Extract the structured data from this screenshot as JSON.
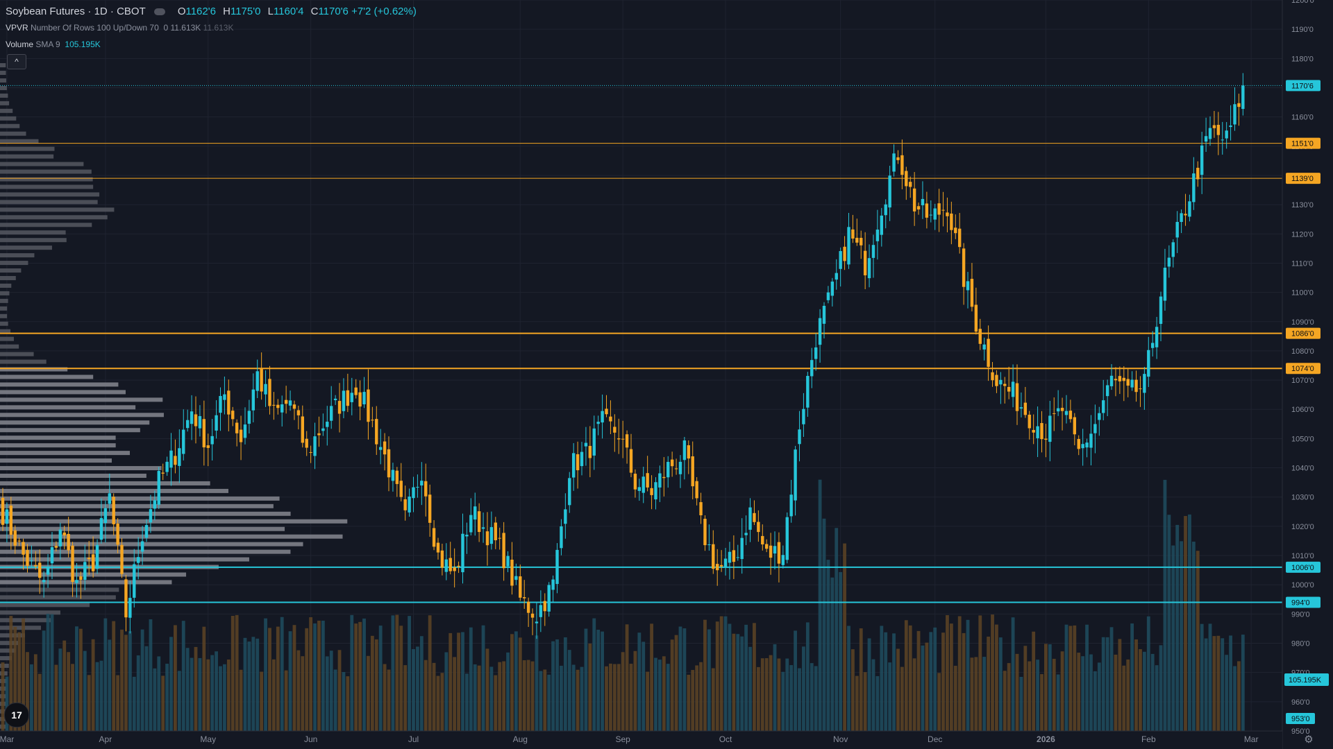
{
  "header": {
    "title": "Soybean Futures · 1D · CBOT",
    "ohlc": [
      {
        "k": "O",
        "v": "1162'6"
      },
      {
        "k": "H",
        "v": "1175'0"
      },
      {
        "k": "L",
        "v": "1160'4"
      },
      {
        "k": "C",
        "v": "1170'6"
      }
    ],
    "change": "+7'2 (+0.62%)"
  },
  "vpvr": {
    "name": "VPVR",
    "params": "Number Of Rows 100 Up/Down 70",
    "value0": "0",
    "value1": "11.613K",
    "value2": "11.613K"
  },
  "volume": {
    "name": "Volume",
    "params": "SMA 9",
    "value": "105.195K"
  },
  "icons": {
    "collapse": "chevron-up-icon",
    "logo": "tradingview-logo-icon",
    "settings": "gear-icon",
    "eye": "eye-icon"
  },
  "logo_text": "17",
  "collapse_glyph": "^",
  "gear_glyph": "⚙",
  "colors": {
    "up": "#26c6da",
    "down": "#f5a623",
    "background": "#141823",
    "grid": "#1f2330",
    "axis_text": "#8a8f9c",
    "cyan_line": "#26c6da",
    "orange_line": "#f5a623"
  },
  "chart_data": {
    "type": "candlestick",
    "symbol": "Soybean Futures",
    "interval": "1D",
    "exchange": "CBOT",
    "ylim": [
      950,
      1200
    ],
    "y_ticks": [
      "950'0",
      "960'0",
      "970'0",
      "980'0",
      "990'0",
      "1000'0",
      "1010'0",
      "1020'0",
      "1030'0",
      "1040'0",
      "1050'0",
      "1060'0",
      "1070'0",
      "1080'0",
      "1090'0",
      "1100'0",
      "1110'0",
      "1120'0",
      "1130'0",
      "1140'0",
      "1150'0",
      "1160'0",
      "1170'0",
      "1180'0",
      "1190'0",
      "1200'0"
    ],
    "x_labels": [
      "Mar",
      "Apr",
      "May",
      "Jun",
      "Jul",
      "Aug",
      "Sep",
      "Oct",
      "Nov",
      "Dec",
      "2026",
      "Feb",
      "Mar"
    ],
    "x_label_candle_index": [
      1,
      25,
      50,
      75,
      100,
      126,
      151,
      176,
      204,
      227,
      254,
      279,
      304
    ],
    "horizontal_lines": [
      {
        "price": 1151,
        "label": "1151'0",
        "color": "#f5a623",
        "width": 1
      },
      {
        "price": 1139,
        "label": "1139'0",
        "color": "#f5a623",
        "width": 1
      },
      {
        "price": 1086,
        "label": "1086'0",
        "color": "#f5a623",
        "width": 2
      },
      {
        "price": 1074,
        "label": "1074'0",
        "color": "#f5a623",
        "width": 2
      },
      {
        "price": 1006,
        "label": "1006'0",
        "color": "#26c6da",
        "width": 2
      },
      {
        "price": 994,
        "label": "994'0",
        "color": "#26c6da",
        "width": 2
      }
    ],
    "last_price": {
      "price": 1170.75,
      "label": "1170'6"
    },
    "volume_label": "105.195K",
    "bottom_label": "953'0",
    "close_path": [
      [
        0,
        1025
      ],
      [
        5,
        1010
      ],
      [
        10,
        1000
      ],
      [
        14,
        1020
      ],
      [
        18,
        1000
      ],
      [
        22,
        1008
      ],
      [
        26,
        1030
      ],
      [
        30,
        990
      ],
      [
        34,
        1018
      ],
      [
        38,
        1035
      ],
      [
        42,
        1045
      ],
      [
        46,
        1060
      ],
      [
        50,
        1048
      ],
      [
        54,
        1065
      ],
      [
        58,
        1050
      ],
      [
        62,
        1072
      ],
      [
        66,
        1058
      ],
      [
        70,
        1063
      ],
      [
        74,
        1045
      ],
      [
        78,
        1055
      ],
      [
        82,
        1062
      ],
      [
        86,
        1068
      ],
      [
        90,
        1055
      ],
      [
        94,
        1040
      ],
      [
        98,
        1022
      ],
      [
        102,
        1040
      ],
      [
        106,
        1010
      ],
      [
        110,
        1003
      ],
      [
        114,
        1025
      ],
      [
        118,
        1018
      ],
      [
        122,
        1010
      ],
      [
        126,
        995
      ],
      [
        130,
        990
      ],
      [
        134,
        1000
      ],
      [
        138,
        1040
      ],
      [
        142,
        1045
      ],
      [
        146,
        1055
      ],
      [
        150,
        1052
      ],
      [
        154,
        1035
      ],
      [
        158,
        1032
      ],
      [
        162,
        1040
      ],
      [
        166,
        1045
      ],
      [
        170,
        1020
      ],
      [
        174,
        1005
      ],
      [
        178,
        1008
      ],
      [
        182,
        1025
      ],
      [
        186,
        1010
      ],
      [
        190,
        1012
      ],
      [
        194,
        1055
      ],
      [
        198,
        1085
      ],
      [
        202,
        1100
      ],
      [
        206,
        1120
      ],
      [
        210,
        1110
      ],
      [
        214,
        1130
      ],
      [
        218,
        1148
      ],
      [
        222,
        1130
      ],
      [
        226,
        1125
      ],
      [
        230,
        1130
      ],
      [
        234,
        1105
      ],
      [
        238,
        1085
      ],
      [
        242,
        1070
      ],
      [
        246,
        1065
      ],
      [
        250,
        1058
      ],
      [
        254,
        1052
      ],
      [
        258,
        1060
      ],
      [
        262,
        1045
      ],
      [
        266,
        1055
      ],
      [
        270,
        1070
      ],
      [
        274,
        1065
      ],
      [
        278,
        1068
      ],
      [
        282,
        1100
      ],
      [
        286,
        1120
      ],
      [
        290,
        1138
      ],
      [
        294,
        1155
      ],
      [
        298,
        1152
      ],
      [
        302,
        1170
      ]
    ],
    "volume_ylim": [
      0,
      70000
    ]
  }
}
